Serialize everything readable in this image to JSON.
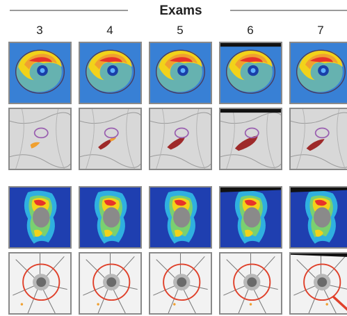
{
  "header": {
    "title": "Exams"
  },
  "columns": [
    {
      "label": "3"
    },
    {
      "label": "4"
    },
    {
      "label": "5"
    },
    {
      "label": "6"
    },
    {
      "label": "7"
    }
  ],
  "rows": [
    {
      "kind": "macular-thickness-heatmap"
    },
    {
      "kind": "macular-fundus-overlay"
    },
    {
      "kind": "optic-disc-heatmap"
    },
    {
      "kind": "optic-disc-fundus-overlay"
    }
  ],
  "colors": {
    "heat_blue": "#2f6fd0",
    "heat_yellow": "#f2d21a",
    "heat_red": "#e8322a",
    "lesion_red": "#9e2a2a",
    "lesion_orange": "#f0a030",
    "ring_purple": "#9a5fb0",
    "ring_red": "#e0402a"
  }
}
